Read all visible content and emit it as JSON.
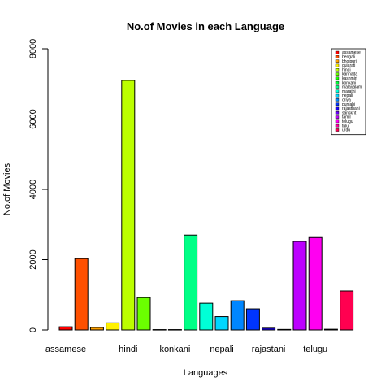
{
  "chart_data": {
    "type": "bar",
    "title": "No.of Movies in each Language",
    "xlabel": "Languages",
    "ylabel": "No.of Movies",
    "ylim": [
      0,
      8000
    ],
    "yticks": [
      0,
      2000,
      4000,
      6000,
      8000
    ],
    "categories": [
      "assamese",
      "bengali",
      "bhojpuri",
      "gujarati",
      "hindi",
      "kannada",
      "kashmiri",
      "konkani",
      "malayalam",
      "marathi",
      "nepali",
      "oriya",
      "punjabi",
      "rajasthani",
      "sanskrit",
      "tamil",
      "telugu",
      "tulu",
      "urdu"
    ],
    "values": [
      90,
      2030,
      70,
      200,
      7100,
      920,
      10,
      10,
      2700,
      760,
      380,
      830,
      600,
      50,
      15,
      2520,
      2630,
      20,
      1110
    ],
    "colors": [
      "#FF0000",
      "#FF5000",
      "#FFA100",
      "#FFF100",
      "#BCFF00",
      "#6BFF00",
      "#1BFF00",
      "#00FF35",
      "#00FF86",
      "#00FFD7",
      "#00D7FF",
      "#0086FF",
      "#0035FF",
      "#1B00FF",
      "#6B00FF",
      "#BC00FF",
      "#FF00F1",
      "#FF00A1",
      "#FF0050"
    ],
    "xtick_labels": [
      {
        "index": 0,
        "text": "assamese"
      },
      {
        "index": 4,
        "text": "hindi"
      },
      {
        "index": 7,
        "text": "konkani"
      },
      {
        "index": 10,
        "text": "nepali"
      },
      {
        "index": 13,
        "text": "rajastani"
      },
      {
        "index": 16,
        "text": "telugu"
      }
    ],
    "legend_position": "top-right",
    "grid": false
  }
}
